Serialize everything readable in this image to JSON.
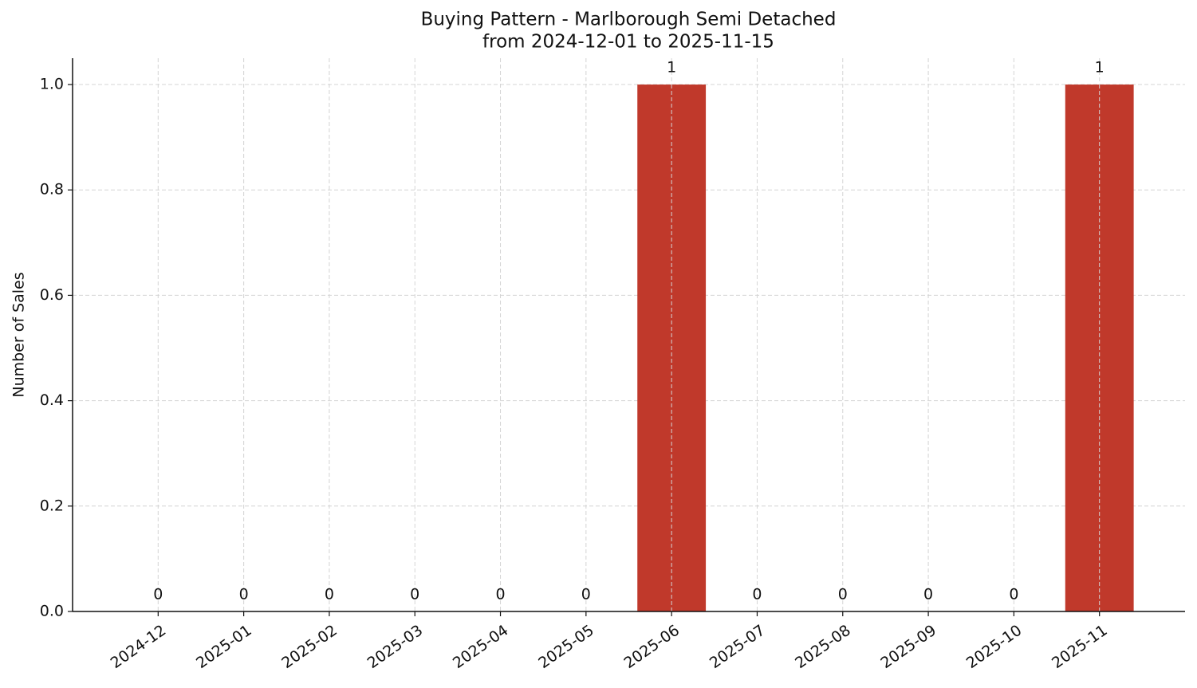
{
  "chart_data": {
    "type": "bar",
    "title": "Buying Pattern - Marlborough Semi Detached",
    "subtitle": "from 2024-12-01 to 2025-11-15",
    "y_label": "Number of Sales",
    "categories": [
      "2024-12",
      "2025-01",
      "2025-02",
      "2025-03",
      "2025-04",
      "2025-05",
      "2025-06",
      "2025-07",
      "2025-08",
      "2025-09",
      "2025-10",
      "2025-11"
    ],
    "values": [
      0,
      0,
      0,
      0,
      0,
      0,
      1,
      0,
      0,
      0,
      0,
      1
    ],
    "color": "#c0392b",
    "ylim": [
      0,
      1.05
    ],
    "yticks": [
      {
        "value": 0,
        "label": "0.0"
      },
      0.2,
      0.4,
      0.6,
      0.8,
      {
        "value": 1,
        "label": "1.0"
      }
    ],
    "grid": true
  }
}
